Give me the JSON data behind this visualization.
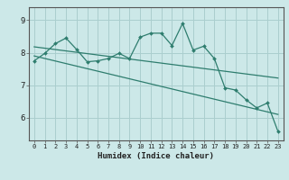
{
  "title": "",
  "xlabel": "Humidex (Indice chaleur)",
  "background_color": "#cce8e8",
  "grid_color": "#aacece",
  "line_color": "#2e7d6e",
  "x_ticks": [
    0,
    1,
    2,
    3,
    4,
    5,
    6,
    7,
    8,
    9,
    10,
    11,
    12,
    13,
    14,
    15,
    16,
    17,
    18,
    19,
    20,
    21,
    22,
    23
  ],
  "y_ticks": [
    6,
    7,
    8,
    9
  ],
  "ylim": [
    5.3,
    9.4
  ],
  "xlim": [
    -0.5,
    23.5
  ],
  "series1_x": [
    0,
    1,
    2,
    3,
    4,
    5,
    6,
    7,
    8,
    9,
    10,
    11,
    12,
    13,
    14,
    15,
    16,
    17,
    18,
    19,
    20,
    21,
    22,
    23
  ],
  "series1_y": [
    7.75,
    7.98,
    8.28,
    8.45,
    8.1,
    7.72,
    7.75,
    7.82,
    7.98,
    7.82,
    8.48,
    8.6,
    8.6,
    8.22,
    8.9,
    8.08,
    8.2,
    7.82,
    6.92,
    6.85,
    6.55,
    6.3,
    6.45,
    5.58
  ],
  "trend1_x": [
    0,
    23
  ],
  "trend1_y": [
    8.18,
    7.22
  ],
  "trend2_x": [
    0,
    23
  ],
  "trend2_y": [
    7.9,
    6.1
  ]
}
